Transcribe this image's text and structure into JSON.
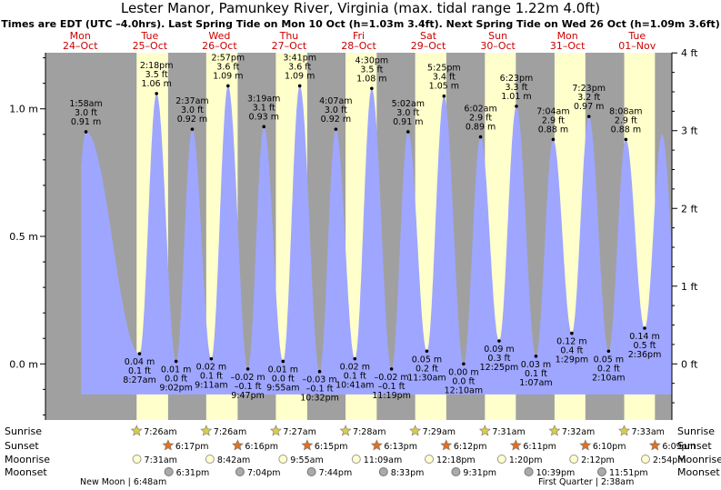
{
  "title": "Lester Manor, Pamunkey River, Virginia (max. tidal range 1.22m 4.0ft)",
  "subtitle": "Times are EDT (UTC –4.0hrs). Last Spring Tide on Mon 10 Oct (h=1.03m 3.4ft). Next Spring Tide on Wed 26 Oct (h=1.09m 3.6ft)",
  "colors": {
    "night": "#a0a0a0",
    "day": "#ffffcc",
    "water": "#9fa6ff",
    "label": "#cc0000",
    "sun": "#ddcc44",
    "sunset": "#e07020",
    "moon": "#ffffcc",
    "moonset": "#aaaaaa"
  },
  "chart_data": {
    "type": "area",
    "title": "Lester Manor, Pamunkey River, Virginia (max. tidal range 1.22m 4.0ft)",
    "x_range_hours": [
      0,
      216
    ],
    "ylim": [
      -0.22,
      1.22
    ],
    "y_ticks_m": [
      {
        "v": 0.0,
        "label": "0.0 m"
      },
      {
        "v": 0.5,
        "label": "0.5 m"
      },
      {
        "v": 1.0,
        "label": "1.0 m"
      }
    ],
    "y_ticks_ft": [
      {
        "v": 0,
        "label": "0 ft"
      },
      {
        "v": 1,
        "label": "1 ft"
      },
      {
        "v": 2,
        "label": "2 ft"
      },
      {
        "v": 3,
        "label": "3 ft"
      },
      {
        "v": 4,
        "label": "4 ft"
      }
    ],
    "days": [
      {
        "dow": "Mon",
        "date": "24–Oct"
      },
      {
        "dow": "Tue",
        "date": "25–Oct"
      },
      {
        "dow": "Wed",
        "date": "26–Oct"
      },
      {
        "dow": "Thu",
        "date": "27–Oct"
      },
      {
        "dow": "Fri",
        "date": "28–Oct"
      },
      {
        "dow": "Sat",
        "date": "29–Oct"
      },
      {
        "dow": "Sun",
        "date": "30–Oct"
      },
      {
        "dow": "Mon",
        "date": "31–Oct"
      },
      {
        "dow": "Tue",
        "date": "01–Nov"
      }
    ],
    "daylight": [
      {
        "sunrise_h": 31.43,
        "sunset_h": 42.28
      },
      {
        "sunrise_h": 55.43,
        "sunset_h": 66.27
      },
      {
        "sunrise_h": 79.45,
        "sunset_h": 90.25
      },
      {
        "sunrise_h": 103.47,
        "sunset_h": 114.22
      },
      {
        "sunrise_h": 127.48,
        "sunset_h": 138.2
      },
      {
        "sunrise_h": 151.52,
        "sunset_h": 162.18
      },
      {
        "sunrise_h": 175.53,
        "sunset_h": 186.17
      },
      {
        "sunrise_h": 199.55,
        "sunset_h": 210.15
      }
    ],
    "tides": [
      {
        "t": 13.97,
        "h": 0.91,
        "type": "high",
        "time": "1:58 am",
        "ft": "3.0 ft",
        "m": "0.91 m"
      },
      {
        "t": 32.45,
        "h": 0.04,
        "type": "low",
        "time": "8:27 am",
        "ft": "0.1 ft",
        "m": "0.04 m"
      },
      {
        "t": 38.3,
        "h": 1.06,
        "type": "high",
        "time": "2:18 pm",
        "ft": "3.5 ft",
        "m": "1.06 m"
      },
      {
        "t": 45.03,
        "h": 0.01,
        "type": "low",
        "time": "9:02 pm",
        "ft": "0.0 ft",
        "m": "0.01 m"
      },
      {
        "t": 50.62,
        "h": 0.92,
        "type": "high",
        "time": "2:37 am",
        "ft": "3.0 ft",
        "m": "0.92 m"
      },
      {
        "t": 57.18,
        "h": 0.02,
        "type": "low",
        "time": "9:11 am",
        "ft": "0.1 ft",
        "m": "0.02 m"
      },
      {
        "t": 62.95,
        "h": 1.09,
        "type": "high",
        "time": "2:57 pm",
        "ft": "3.6 ft",
        "m": "1.09 m"
      },
      {
        "t": 69.78,
        "h": -0.02,
        "type": "low",
        "time": "9:47 pm",
        "ft": "–0.1 ft",
        "m": "–0.02 m"
      },
      {
        "t": 75.32,
        "h": 0.93,
        "type": "high",
        "time": "3:19 am",
        "ft": "3.1 ft",
        "m": "0.93 m"
      },
      {
        "t": 81.92,
        "h": 0.01,
        "type": "low",
        "time": "9:55 am",
        "ft": "0.0 ft",
        "m": "0.01 m"
      },
      {
        "t": 87.68,
        "h": 1.09,
        "type": "high",
        "time": "3:41 pm",
        "ft": "3.6 ft",
        "m": "1.09 m"
      },
      {
        "t": 94.53,
        "h": -0.03,
        "type": "low",
        "time": "10:32 pm",
        "ft": "–0.1 ft",
        "m": "–0.03 m"
      },
      {
        "t": 100.12,
        "h": 0.92,
        "type": "high",
        "time": "4:07 am",
        "ft": "3.0 ft",
        "m": "0.92 m"
      },
      {
        "t": 106.68,
        "h": 0.02,
        "type": "low",
        "time": "10:41 am",
        "ft": "0.1 ft",
        "m": "0.02 m"
      },
      {
        "t": 112.5,
        "h": 1.08,
        "type": "high",
        "time": "4:30 pm",
        "ft": "3.5 ft",
        "m": "1.08 m"
      },
      {
        "t": 119.32,
        "h": -0.02,
        "type": "low",
        "time": "11:19 pm",
        "ft": "–0.1 ft",
        "m": "–0.02 m"
      },
      {
        "t": 125.03,
        "h": 0.91,
        "type": "high",
        "time": "5:02 am",
        "ft": "3.0 ft",
        "m": "0.91 m"
      },
      {
        "t": 131.5,
        "h": 0.05,
        "type": "low",
        "time": "11:30 am",
        "ft": "0.2 ft",
        "m": "0.05 m"
      },
      {
        "t": 137.42,
        "h": 1.05,
        "type": "high",
        "time": "5:25 pm",
        "ft": "3.4 ft",
        "m": "1.05 m"
      },
      {
        "t": 144.17,
        "h": 0.0,
        "type": "low",
        "time": "12:10 am",
        "ft": "0.0 ft",
        "m": "0.00 m"
      },
      {
        "t": 150.03,
        "h": 0.89,
        "type": "high",
        "time": "6:02 am",
        "ft": "2.9 ft",
        "m": "0.89 m"
      },
      {
        "t": 156.42,
        "h": 0.09,
        "type": "low",
        "time": "12:25 pm",
        "ft": "0.3 ft",
        "m": "0.09 m"
      },
      {
        "t": 162.38,
        "h": 1.01,
        "type": "high",
        "time": "6:23 pm",
        "ft": "3.3 ft",
        "m": "1.01 m"
      },
      {
        "t": 169.12,
        "h": 0.03,
        "type": "low",
        "time": "1:07 am",
        "ft": "0.1 ft",
        "m": "0.03 m"
      },
      {
        "t": 175.07,
        "h": 0.88,
        "type": "high",
        "time": "7:04 am",
        "ft": "2.9 ft",
        "m": "0.88 m"
      },
      {
        "t": 181.48,
        "h": 0.12,
        "type": "low",
        "time": "1:29 pm",
        "ft": "0.4 ft",
        "m": "0.12 m"
      },
      {
        "t": 187.38,
        "h": 0.97,
        "type": "high",
        "time": "7:23 pm",
        "ft": "3.2 ft",
        "m": "0.97 m"
      },
      {
        "t": 194.17,
        "h": 0.05,
        "type": "low",
        "time": "2:10 am",
        "ft": "0.2 ft",
        "m": "0.05 m"
      },
      {
        "t": 200.13,
        "h": 0.88,
        "type": "high",
        "time": "8:08 am",
        "ft": "2.9 ft",
        "m": "0.88 m"
      },
      {
        "t": 206.6,
        "h": 0.14,
        "type": "low",
        "time": "2:36 pm",
        "ft": "0.5 ft",
        "m": "0.14 m"
      }
    ]
  },
  "legend": {
    "labels_left": [
      "Sunrise",
      "Sunset",
      "Moonrise",
      "Moonset"
    ],
    "labels_right": [
      "Sunrise",
      "Sunset",
      "Moonrise",
      "Moonset"
    ],
    "sunrise": [
      {
        "t": 31.43,
        "label": "7:26am"
      },
      {
        "t": 55.43,
        "label": "7:26am"
      },
      {
        "t": 79.45,
        "label": "7:27am"
      },
      {
        "t": 103.47,
        "label": "7:28am"
      },
      {
        "t": 127.48,
        "label": "7:29am"
      },
      {
        "t": 151.52,
        "label": "7:31am"
      },
      {
        "t": 175.53,
        "label": "7:32am"
      },
      {
        "t": 199.55,
        "label": "7:33am"
      }
    ],
    "sunset": [
      {
        "t": 42.28,
        "label": "6:17pm"
      },
      {
        "t": 66.27,
        "label": "6:16pm"
      },
      {
        "t": 90.25,
        "label": "6:15pm"
      },
      {
        "t": 114.22,
        "label": "6:13pm"
      },
      {
        "t": 138.2,
        "label": "6:12pm"
      },
      {
        "t": 162.18,
        "label": "6:11pm"
      },
      {
        "t": 186.17,
        "label": "6:10pm"
      },
      {
        "t": 210.15,
        "label": "6:09pm"
      }
    ],
    "moonrise": [
      {
        "t": 31.52,
        "label": "7:31am"
      },
      {
        "t": 56.7,
        "label": "8:42am"
      },
      {
        "t": 81.92,
        "label": "9:55am"
      },
      {
        "t": 107.15,
        "label": "11:09am"
      },
      {
        "t": 132.3,
        "label": "12:18pm"
      },
      {
        "t": 157.33,
        "label": "1:20pm"
      },
      {
        "t": 182.2,
        "label": "2:12pm"
      },
      {
        "t": 206.9,
        "label": "2:54pm"
      }
    ],
    "moonset": [
      {
        "t": 42.52,
        "label": "6:31pm"
      },
      {
        "t": 67.07,
        "label": "7:04pm"
      },
      {
        "t": 91.73,
        "label": "7:44pm"
      },
      {
        "t": 116.55,
        "label": "8:33pm"
      },
      {
        "t": 141.52,
        "label": "9:31pm"
      },
      {
        "t": 166.65,
        "label": "10:39pm"
      },
      {
        "t": 191.85,
        "label": "11:51pm"
      }
    ],
    "new_moon": "New Moon | 6:48am",
    "first_quarter": "First Quarter | 2:38am"
  }
}
